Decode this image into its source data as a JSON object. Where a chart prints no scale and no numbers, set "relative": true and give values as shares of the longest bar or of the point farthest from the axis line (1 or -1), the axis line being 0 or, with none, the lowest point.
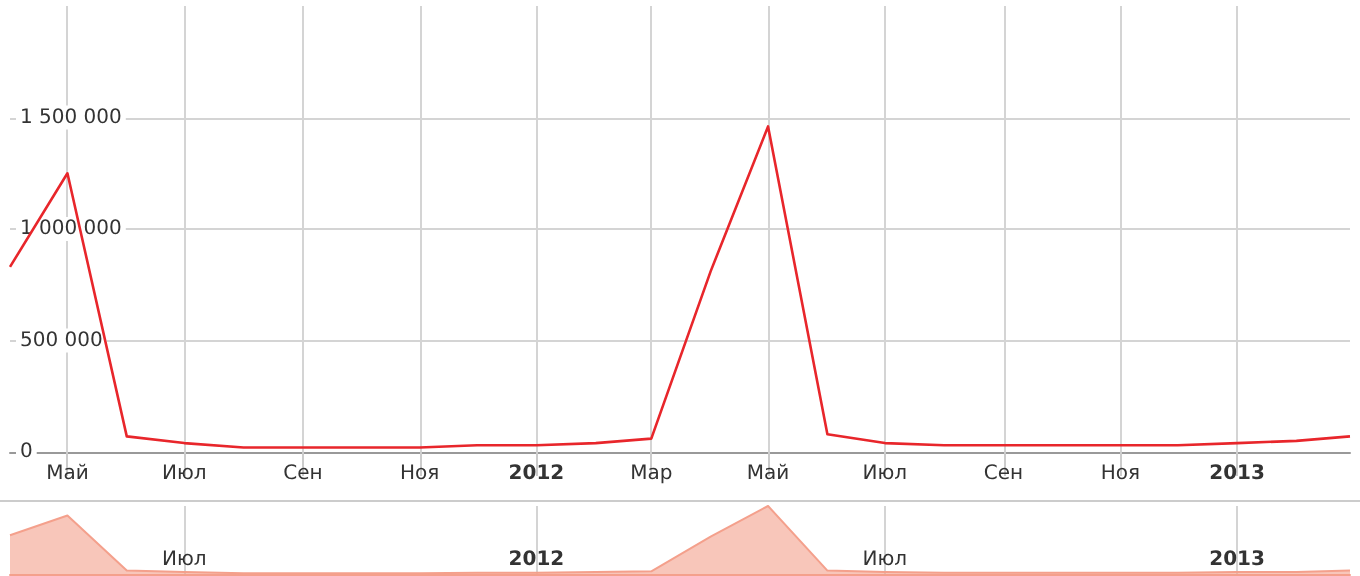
{
  "chart_data": [
    {
      "type": "line",
      "x": [
        "2011-04",
        "2011-05",
        "2011-06",
        "2011-07",
        "2011-08",
        "2011-09",
        "2011-10",
        "2011-11",
        "2011-12",
        "2012-01",
        "2012-02",
        "2012-03",
        "2012-04",
        "2012-05",
        "2012-06",
        "2012-07",
        "2012-08",
        "2012-09",
        "2012-10",
        "2012-11",
        "2012-12",
        "2013-01",
        "2013-02",
        "2013-03"
      ],
      "series": [
        {
          "color": "#e8262b",
          "values": [
            830000,
            1250000,
            70000,
            40000,
            20000,
            20000,
            20000,
            20000,
            30000,
            30000,
            40000,
            60000,
            810000,
            1460000,
            80000,
            40000,
            30000,
            30000,
            30000,
            30000,
            30000,
            40000,
            50000,
            70000
          ]
        }
      ],
      "xlim": [
        "2011-04",
        "2013-03"
      ],
      "xticks": [
        {
          "value": "2011-05",
          "label": "Май"
        },
        {
          "value": "2011-07",
          "label": "Июл"
        },
        {
          "value": "2011-09",
          "label": "Сен"
        },
        {
          "value": "2011-11",
          "label": "Ноя"
        },
        {
          "value": "2012-01",
          "label": "2012"
        },
        {
          "value": "2012-03",
          "label": "Мар"
        },
        {
          "value": "2012-05",
          "label": "Май"
        },
        {
          "value": "2012-07",
          "label": "Июл"
        },
        {
          "value": "2012-09",
          "label": "Сен"
        },
        {
          "value": "2012-11",
          "label": "Ноя"
        },
        {
          "value": "2013-01",
          "label": "2013"
        }
      ],
      "ylim": [
        0,
        2000000
      ],
      "yticks": [
        {
          "value": 0,
          "label": "0"
        },
        {
          "value": 500000,
          "label": "500 000"
        },
        {
          "value": 1000000,
          "label": "1 000 000"
        },
        {
          "value": 1500000,
          "label": "1 500 000"
        }
      ],
      "grid": true,
      "marker": "none"
    },
    {
      "type": "area",
      "relative": true,
      "x": [
        "2011-04",
        "2011-05",
        "2011-06",
        "2011-07",
        "2011-08",
        "2011-09",
        "2011-10",
        "2011-11",
        "2011-12",
        "2012-01",
        "2012-02",
        "2012-03",
        "2012-04",
        "2012-05",
        "2012-06",
        "2012-07",
        "2012-08",
        "2012-09",
        "2012-10",
        "2012-11",
        "2012-12",
        "2013-01",
        "2013-02",
        "2013-03"
      ],
      "series": [
        {
          "color": "#f4a08c",
          "values": [
            0.57,
            0.86,
            0.05,
            0.03,
            0.01,
            0.01,
            0.01,
            0.01,
            0.02,
            0.02,
            0.03,
            0.04,
            0.55,
            1,
            0.05,
            0.03,
            0.02,
            0.02,
            0.02,
            0.02,
            0.02,
            0.03,
            0.03,
            0.05
          ]
        }
      ],
      "xlim": [
        "2011-04",
        "2013-03"
      ],
      "xticks": [
        {
          "value": "2011-07",
          "label": "Июл"
        },
        {
          "value": "2012-01",
          "label": "2012"
        },
        {
          "value": "2012-07",
          "label": "Июл"
        },
        {
          "value": "2013-01",
          "label": "2013"
        }
      ],
      "tick_labels": "x",
      "grid": "x",
      "marker": "none"
    }
  ]
}
